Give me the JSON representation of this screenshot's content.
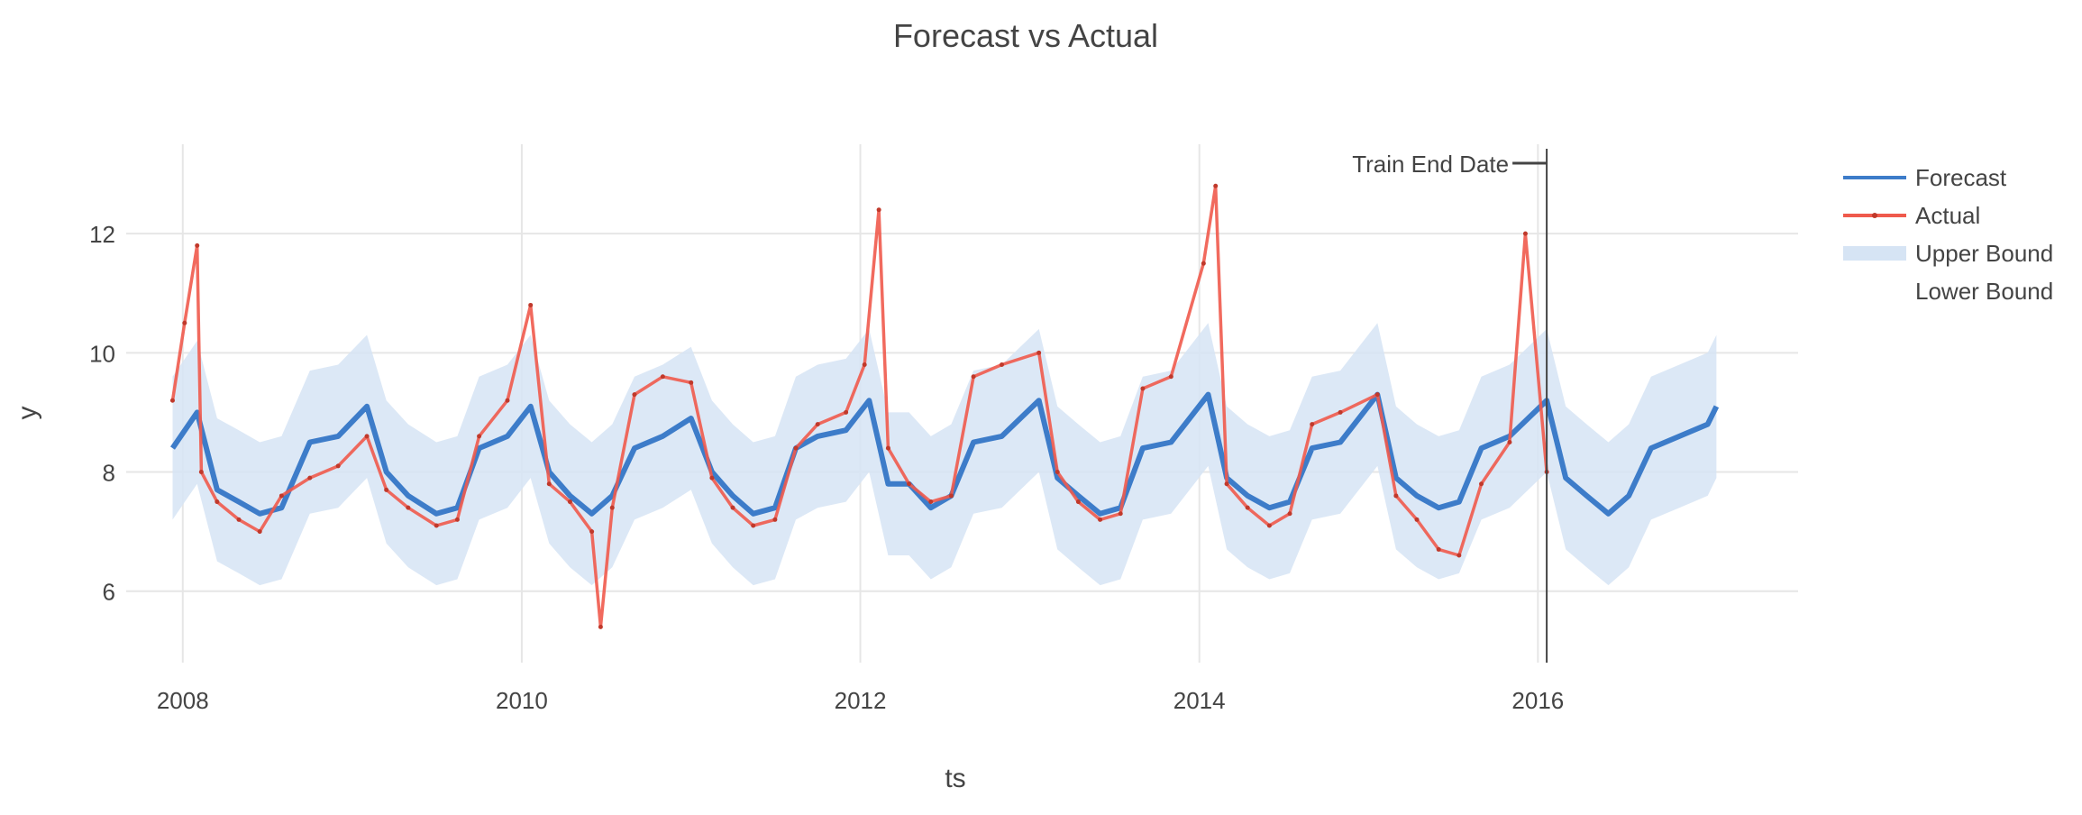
{
  "chart_data": {
    "type": "line",
    "title": "Forecast vs Actual",
    "xlabel": "ts",
    "ylabel": "y",
    "xlim": [
      "2007-09-01",
      "2017-07-15"
    ],
    "ylim": [
      4.8,
      13.5
    ],
    "x_ticks": [
      "2008",
      "2010",
      "2012",
      "2014",
      "2016"
    ],
    "y_ticks": [
      6,
      8,
      10,
      12
    ],
    "grid": true,
    "legend_position": "top-right",
    "annotation": {
      "text": "Train End Date",
      "x": "2016-01-20"
    },
    "series": [
      {
        "name": "Forecast",
        "color": "#3d7cc9",
        "x": [
          "2007-12-10",
          "2008-02-01",
          "2008-03-15",
          "2008-05-01",
          "2008-06-15",
          "2008-08-01",
          "2008-10-01",
          "2008-12-01",
          "2009-02-01",
          "2009-03-15",
          "2009-05-01",
          "2009-07-01",
          "2009-08-15",
          "2009-10-01",
          "2009-12-01",
          "2010-01-20",
          "2010-03-01",
          "2010-04-15",
          "2010-06-01",
          "2010-07-15",
          "2010-09-01",
          "2010-11-01",
          "2011-01-01",
          "2011-02-15",
          "2011-04-01",
          "2011-05-15",
          "2011-07-01",
          "2011-08-15",
          "2011-10-01",
          "2011-12-01",
          "2012-01-20",
          "2012-03-01",
          "2012-04-15",
          "2012-06-01",
          "2012-07-15",
          "2012-09-01",
          "2012-11-01",
          "2013-01-20",
          "2013-03-01",
          "2013-04-15",
          "2013-06-01",
          "2013-07-15",
          "2013-09-01",
          "2013-11-01",
          "2014-01-20",
          "2014-03-01",
          "2014-04-15",
          "2014-06-01",
          "2014-07-15",
          "2014-09-01",
          "2014-11-01",
          "2015-01-20",
          "2015-03-01",
          "2015-04-15",
          "2015-06-01",
          "2015-07-15",
          "2015-09-01",
          "2015-11-01",
          "2016-01-20",
          "2016-03-01",
          "2016-04-15",
          "2016-06-01",
          "2016-07-15",
          "2016-09-01",
          "2016-11-01",
          "2017-01-01",
          "2017-01-20"
        ],
        "values": [
          8.4,
          9.0,
          7.7,
          7.5,
          7.3,
          7.4,
          8.5,
          8.6,
          9.1,
          8.0,
          7.6,
          7.3,
          7.4,
          8.4,
          8.6,
          9.1,
          8.0,
          7.6,
          7.3,
          7.6,
          8.4,
          8.6,
          8.9,
          8.0,
          7.6,
          7.3,
          7.4,
          8.4,
          8.6,
          8.7,
          9.2,
          7.8,
          7.8,
          7.4,
          7.6,
          8.5,
          8.6,
          9.2,
          7.9,
          7.6,
          7.3,
          7.4,
          8.4,
          8.5,
          9.3,
          7.9,
          7.6,
          7.4,
          7.5,
          8.4,
          8.5,
          9.3,
          7.9,
          7.6,
          7.4,
          7.5,
          8.4,
          8.6,
          9.2,
          7.9,
          7.6,
          7.3,
          7.6,
          8.4,
          8.6,
          8.8,
          9.1
        ]
      },
      {
        "name": "Actual",
        "color": "#ef5a4c",
        "x": [
          "2007-12-10",
          "2008-01-05",
          "2008-02-01",
          "2008-02-10",
          "2008-03-15",
          "2008-05-01",
          "2008-06-15",
          "2008-08-01",
          "2008-10-01",
          "2008-12-01",
          "2009-02-01",
          "2009-03-15",
          "2009-05-01",
          "2009-07-01",
          "2009-08-15",
          "2009-10-01",
          "2009-12-01",
          "2010-01-20",
          "2010-03-01",
          "2010-04-15",
          "2010-06-01",
          "2010-06-20",
          "2010-07-15",
          "2010-09-01",
          "2010-11-01",
          "2011-01-01",
          "2011-02-15",
          "2011-04-01",
          "2011-05-15",
          "2011-07-01",
          "2011-08-15",
          "2011-10-01",
          "2011-12-01",
          "2012-01-10",
          "2012-02-10",
          "2012-03-01",
          "2012-04-15",
          "2012-06-01",
          "2012-07-15",
          "2012-09-01",
          "2012-11-01",
          "2013-01-20",
          "2013-03-01",
          "2013-04-15",
          "2013-06-01",
          "2013-07-15",
          "2013-09-01",
          "2013-11-01",
          "2014-01-10",
          "2014-02-05",
          "2014-03-01",
          "2014-04-15",
          "2014-06-01",
          "2014-07-15",
          "2014-09-01",
          "2014-11-01",
          "2015-01-20",
          "2015-03-01",
          "2015-04-15",
          "2015-06-01",
          "2015-07-15",
          "2015-09-01",
          "2015-11-01",
          "2015-12-05",
          "2016-01-20"
        ],
        "values": [
          9.2,
          10.5,
          11.8,
          8.0,
          7.5,
          7.2,
          7.0,
          7.6,
          7.9,
          8.1,
          8.6,
          7.7,
          7.4,
          7.1,
          7.2,
          8.6,
          9.2,
          10.8,
          7.8,
          7.5,
          7.0,
          5.4,
          7.4,
          9.3,
          9.6,
          9.5,
          7.9,
          7.4,
          7.1,
          7.2,
          8.4,
          8.8,
          9.0,
          9.8,
          12.4,
          8.4,
          7.8,
          7.5,
          7.6,
          9.6,
          9.8,
          10.0,
          8.0,
          7.5,
          7.2,
          7.3,
          9.4,
          9.6,
          11.5,
          12.8,
          7.8,
          7.4,
          7.1,
          7.3,
          8.8,
          9.0,
          9.3,
          7.6,
          7.2,
          6.7,
          6.6,
          7.8,
          8.5,
          12.0,
          8.0
        ]
      },
      {
        "name": "Upper Bound",
        "color": "#d6e4f4",
        "x": [
          "2007-12-10",
          "2008-02-01",
          "2008-03-15",
          "2008-05-01",
          "2008-06-15",
          "2008-08-01",
          "2008-10-01",
          "2008-12-01",
          "2009-02-01",
          "2009-03-15",
          "2009-05-01",
          "2009-07-01",
          "2009-08-15",
          "2009-10-01",
          "2009-12-01",
          "2010-01-20",
          "2010-03-01",
          "2010-04-15",
          "2010-06-01",
          "2010-07-15",
          "2010-09-01",
          "2010-11-01",
          "2011-01-01",
          "2011-02-15",
          "2011-04-01",
          "2011-05-15",
          "2011-07-01",
          "2011-08-15",
          "2011-10-01",
          "2011-12-01",
          "2012-01-20",
          "2012-03-01",
          "2012-04-15",
          "2012-06-01",
          "2012-07-15",
          "2012-09-01",
          "2012-11-01",
          "2013-01-20",
          "2013-03-01",
          "2013-04-15",
          "2013-06-01",
          "2013-07-15",
          "2013-09-01",
          "2013-11-01",
          "2014-01-20",
          "2014-03-01",
          "2014-04-15",
          "2014-06-01",
          "2014-07-15",
          "2014-09-01",
          "2014-11-01",
          "2015-01-20",
          "2015-03-01",
          "2015-04-15",
          "2015-06-01",
          "2015-07-15",
          "2015-09-01",
          "2015-11-01",
          "2016-01-20",
          "2016-03-01",
          "2016-04-15",
          "2016-06-01",
          "2016-07-15",
          "2016-09-01",
          "2016-11-01",
          "2017-01-01",
          "2017-01-20"
        ],
        "values": [
          9.6,
          10.2,
          8.9,
          8.7,
          8.5,
          8.6,
          9.7,
          9.8,
          10.3,
          9.2,
          8.8,
          8.5,
          8.6,
          9.6,
          9.8,
          10.3,
          9.2,
          8.8,
          8.5,
          8.8,
          9.6,
          9.8,
          10.1,
          9.2,
          8.8,
          8.5,
          8.6,
          9.6,
          9.8,
          9.9,
          10.4,
          9.0,
          9.0,
          8.6,
          8.8,
          9.7,
          9.8,
          10.4,
          9.1,
          8.8,
          8.5,
          8.6,
          9.6,
          9.7,
          10.5,
          9.1,
          8.8,
          8.6,
          8.7,
          9.6,
          9.7,
          10.5,
          9.1,
          8.8,
          8.6,
          8.7,
          9.6,
          9.8,
          10.4,
          9.1,
          8.8,
          8.5,
          8.8,
          9.6,
          9.8,
          10.0,
          10.3
        ]
      },
      {
        "name": "Lower Bound",
        "color": "#d6e4f4",
        "x": [
          "2007-12-10",
          "2008-02-01",
          "2008-03-15",
          "2008-05-01",
          "2008-06-15",
          "2008-08-01",
          "2008-10-01",
          "2008-12-01",
          "2009-02-01",
          "2009-03-15",
          "2009-05-01",
          "2009-07-01",
          "2009-08-15",
          "2009-10-01",
          "2009-12-01",
          "2010-01-20",
          "2010-03-01",
          "2010-04-15",
          "2010-06-01",
          "2010-07-15",
          "2010-09-01",
          "2010-11-01",
          "2011-01-01",
          "2011-02-15",
          "2011-04-01",
          "2011-05-15",
          "2011-07-01",
          "2011-08-15",
          "2011-10-01",
          "2011-12-01",
          "2012-01-20",
          "2012-03-01",
          "2012-04-15",
          "2012-06-01",
          "2012-07-15",
          "2012-09-01",
          "2012-11-01",
          "2013-01-20",
          "2013-03-01",
          "2013-04-15",
          "2013-06-01",
          "2013-07-15",
          "2013-09-01",
          "2013-11-01",
          "2014-01-20",
          "2014-03-01",
          "2014-04-15",
          "2014-06-01",
          "2014-07-15",
          "2014-09-01",
          "2014-11-01",
          "2015-01-20",
          "2015-03-01",
          "2015-04-15",
          "2015-06-01",
          "2015-07-15",
          "2015-09-01",
          "2015-11-01",
          "2016-01-20",
          "2016-03-01",
          "2016-04-15",
          "2016-06-01",
          "2016-07-15",
          "2016-09-01",
          "2016-11-01",
          "2017-01-01",
          "2017-01-20"
        ],
        "values": [
          7.2,
          7.8,
          6.5,
          6.3,
          6.1,
          6.2,
          7.3,
          7.4,
          7.9,
          6.8,
          6.4,
          6.1,
          6.2,
          7.2,
          7.4,
          7.9,
          6.8,
          6.4,
          6.1,
          6.4,
          7.2,
          7.4,
          7.7,
          6.8,
          6.4,
          6.1,
          6.2,
          7.2,
          7.4,
          7.5,
          8.0,
          6.6,
          6.6,
          6.2,
          6.4,
          7.3,
          7.4,
          8.0,
          6.7,
          6.4,
          6.1,
          6.2,
          7.2,
          7.3,
          8.1,
          6.7,
          6.4,
          6.2,
          6.3,
          7.2,
          7.3,
          8.1,
          6.7,
          6.4,
          6.2,
          6.3,
          7.2,
          7.4,
          8.0,
          6.7,
          6.4,
          6.1,
          6.4,
          7.2,
          7.4,
          7.6,
          7.9
        ]
      }
    ]
  }
}
